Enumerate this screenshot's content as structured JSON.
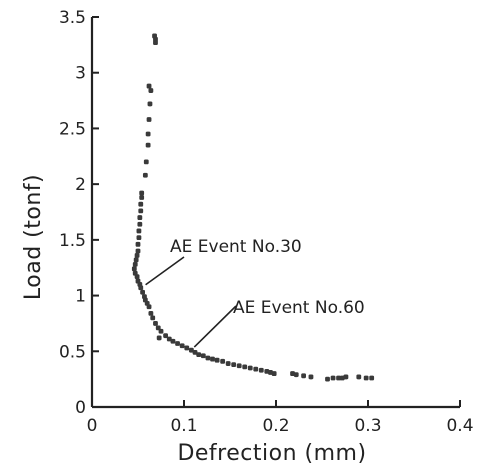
{
  "chart_data": {
    "type": "scatter",
    "title": "",
    "xlabel": "Defrection (mm)",
    "ylabel": "Load (tonf)",
    "xlim": [
      0,
      0.4
    ],
    "ylim": [
      0,
      3.5
    ],
    "x_ticks": [
      0,
      0.1,
      0.2,
      0.3,
      0.4
    ],
    "x_tick_labels": [
      "0",
      "0.1",
      "0.2",
      "0.3",
      "0.4"
    ],
    "y_ticks": [
      0,
      0.5,
      1,
      1.5,
      2,
      2.5,
      3,
      3.5
    ],
    "y_tick_labels": [
      "0",
      "0.5",
      "1",
      "1.5",
      "2",
      "2.5",
      "3",
      "3.5"
    ],
    "grid": false,
    "marker_color": "#3a3a3a",
    "series": [
      {
        "points": [
          [
            0.068,
            3.33
          ],
          [
            0.069,
            3.3
          ],
          [
            0.069,
            3.27
          ],
          [
            0.062,
            2.88
          ],
          [
            0.064,
            2.84
          ],
          [
            0.063,
            2.72
          ],
          [
            0.062,
            2.58
          ],
          [
            0.061,
            2.45
          ],
          [
            0.061,
            2.35
          ],
          [
            0.059,
            2.2
          ],
          [
            0.058,
            2.08
          ],
          [
            0.054,
            1.92
          ],
          [
            0.054,
            1.88
          ],
          [
            0.053,
            1.82
          ],
          [
            0.053,
            1.76
          ],
          [
            0.052,
            1.7
          ],
          [
            0.052,
            1.64
          ],
          [
            0.051,
            1.58
          ],
          [
            0.051,
            1.52
          ],
          [
            0.05,
            1.46
          ],
          [
            0.05,
            1.4
          ],
          [
            0.049,
            1.36
          ],
          [
            0.048,
            1.32
          ],
          [
            0.047,
            1.28
          ],
          [
            0.046,
            1.24
          ],
          [
            0.047,
            1.2
          ],
          [
            0.049,
            1.17
          ],
          [
            0.05,
            1.13
          ],
          [
            0.052,
            1.1
          ],
          [
            0.053,
            1.07
          ],
          [
            0.055,
            1.03
          ],
          [
            0.057,
            0.99
          ],
          [
            0.058,
            0.96
          ],
          [
            0.06,
            0.93
          ],
          [
            0.062,
            0.9
          ],
          [
            0.064,
            0.84
          ],
          [
            0.066,
            0.8
          ],
          [
            0.069,
            0.75
          ],
          [
            0.072,
            0.71
          ],
          [
            0.075,
            0.68
          ],
          [
            0.073,
            0.62
          ],
          [
            0.08,
            0.64
          ],
          [
            0.084,
            0.61
          ],
          [
            0.088,
            0.59
          ],
          [
            0.093,
            0.57
          ],
          [
            0.098,
            0.55
          ],
          [
            0.103,
            0.53
          ],
          [
            0.108,
            0.51
          ],
          [
            0.112,
            0.49
          ],
          [
            0.116,
            0.47
          ],
          [
            0.121,
            0.46
          ],
          [
            0.126,
            0.44
          ],
          [
            0.131,
            0.43
          ],
          [
            0.136,
            0.42
          ],
          [
            0.142,
            0.41
          ],
          [
            0.148,
            0.39
          ],
          [
            0.154,
            0.38
          ],
          [
            0.16,
            0.37
          ],
          [
            0.166,
            0.36
          ],
          [
            0.172,
            0.35
          ],
          [
            0.178,
            0.34
          ],
          [
            0.184,
            0.33
          ],
          [
            0.19,
            0.32
          ],
          [
            0.194,
            0.31
          ],
          [
            0.198,
            0.3
          ],
          [
            0.218,
            0.3
          ],
          [
            0.222,
            0.29
          ],
          [
            0.23,
            0.28
          ],
          [
            0.238,
            0.27
          ],
          [
            0.256,
            0.25
          ],
          [
            0.262,
            0.26
          ],
          [
            0.268,
            0.26
          ],
          [
            0.272,
            0.26
          ],
          [
            0.276,
            0.27
          ],
          [
            0.29,
            0.27
          ],
          [
            0.298,
            0.26
          ],
          [
            0.304,
            0.26
          ]
        ]
      }
    ],
    "annotations": [
      {
        "text": "AE Event No.30",
        "x": 0.053,
        "y": 1.07
      },
      {
        "text": "AE Event No.60",
        "x": 0.107,
        "y": 0.52
      }
    ]
  }
}
